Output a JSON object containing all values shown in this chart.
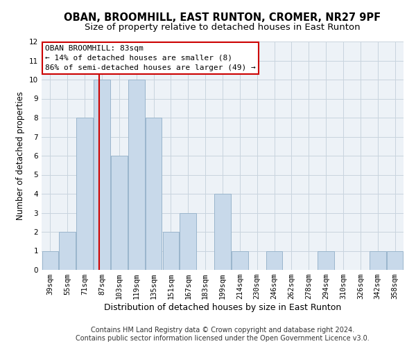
{
  "title": "OBAN, BROOMHILL, EAST RUNTON, CROMER, NR27 9PF",
  "subtitle": "Size of property relative to detached houses in East Runton",
  "xlabel": "Distribution of detached houses by size in East Runton",
  "ylabel": "Number of detached properties",
  "categories": [
    "39sqm",
    "55sqm",
    "71sqm",
    "87sqm",
    "103sqm",
    "119sqm",
    "135sqm",
    "151sqm",
    "167sqm",
    "183sqm",
    "199sqm",
    "214sqm",
    "230sqm",
    "246sqm",
    "262sqm",
    "278sqm",
    "294sqm",
    "310sqm",
    "326sqm",
    "342sqm",
    "358sqm"
  ],
  "values": [
    1,
    2,
    8,
    10,
    6,
    10,
    8,
    2,
    3,
    0,
    4,
    1,
    0,
    1,
    0,
    0,
    1,
    0,
    0,
    1,
    1
  ],
  "bar_color": "#c8d9ea",
  "bar_edgecolor": "#9ab5cc",
  "vline_x_index": 2.82,
  "vline_color": "#cc0000",
  "annotation_text": "OBAN BROOMHILL: 83sqm\n← 14% of detached houses are smaller (8)\n86% of semi-detached houses are larger (49) →",
  "annotation_box_color": "#ffffff",
  "annotation_box_edgecolor": "#cc0000",
  "ylim": [
    0,
    12
  ],
  "yticks": [
    0,
    1,
    2,
    3,
    4,
    5,
    6,
    7,
    8,
    9,
    10,
    11,
    12
  ],
  "footer1": "Contains HM Land Registry data © Crown copyright and database right 2024.",
  "footer2": "Contains public sector information licensed under the Open Government Licence v3.0.",
  "bg_color": "#edf2f7",
  "grid_color": "#c8d4de",
  "title_fontsize": 10.5,
  "subtitle_fontsize": 9.5,
  "xlabel_fontsize": 9,
  "ylabel_fontsize": 8.5,
  "tick_fontsize": 7.5,
  "annotation_fontsize": 8,
  "footer_fontsize": 7
}
